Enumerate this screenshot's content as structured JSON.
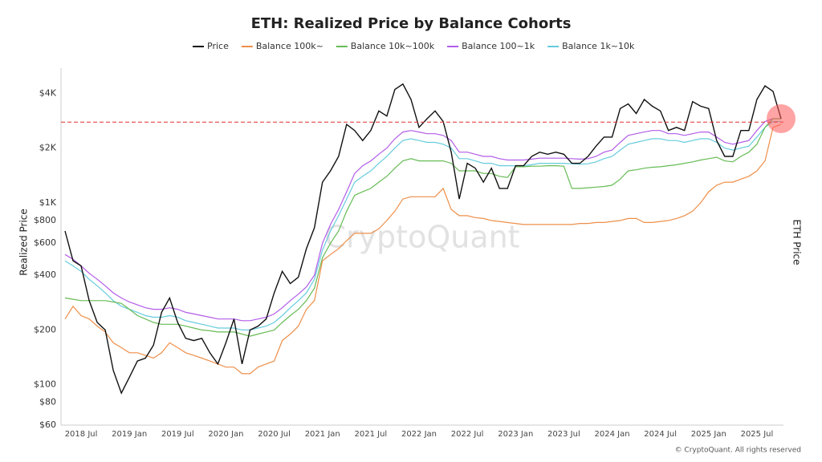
{
  "chart_data": {
    "type": "line",
    "title": "ETH: Realized Price by Balance Cohorts",
    "y_label": "Realized Price",
    "y2_label": "ETH Price",
    "watermark": "CryptoQuant",
    "credit": "© CryptoQuant. All rights reserved",
    "log_scale": true,
    "grid": false,
    "legend": "top",
    "reference_line": 2780,
    "reference_color": "#e03030",
    "x": [
      "2018 May",
      "2018 Jun",
      "2018 Jul",
      "2018 Aug",
      "2018 Sep",
      "2018 Oct",
      "2018 Nov",
      "2018 Dec",
      "2019 Jan",
      "2019 Feb",
      "2019 Mar",
      "2019 Apr",
      "2019 May",
      "2019 Jun",
      "2019 Jul",
      "2019 Aug",
      "2019 Sep",
      "2019 Oct",
      "2019 Nov",
      "2019 Dec",
      "2020 Jan",
      "2020 Feb",
      "2020 Mar",
      "2020 Apr",
      "2020 May",
      "2020 Jun",
      "2020 Jul",
      "2020 Aug",
      "2020 Sep",
      "2020 Oct",
      "2020 Nov",
      "2020 Dec",
      "2021 Jan",
      "2021 Feb",
      "2021 Mar",
      "2021 Apr",
      "2021 May",
      "2021 Jun",
      "2021 Jul",
      "2021 Aug",
      "2021 Sep",
      "2021 Oct",
      "2021 Nov",
      "2021 Dec",
      "2022 Jan",
      "2022 Feb",
      "2022 Mar",
      "2022 Apr",
      "2022 May",
      "2022 Jun",
      "2022 Jul",
      "2022 Aug",
      "2022 Sep",
      "2022 Oct",
      "2022 Nov",
      "2022 Dec",
      "2023 Jan",
      "2023 Feb",
      "2023 Mar",
      "2023 Apr",
      "2023 May",
      "2023 Jun",
      "2023 Jul",
      "2023 Aug",
      "2023 Sep",
      "2023 Oct",
      "2023 Nov",
      "2023 Dec",
      "2024 Jan",
      "2024 Feb",
      "2024 Mar",
      "2024 Apr",
      "2024 May",
      "2024 Jun",
      "2024 Jul",
      "2024 Aug",
      "2024 Sep",
      "2024 Oct",
      "2024 Nov",
      "2024 Dec",
      "2025 Jan",
      "2025 Feb",
      "2025 Mar",
      "2025 Apr",
      "2025 May",
      "2025 Jun",
      "2025 Jul",
      "2025 Aug",
      "2025 Sep",
      "2025 Oct"
    ],
    "xticks": [
      "2018 Jul",
      "2019 Jan",
      "2019 Jul",
      "2020 Jan",
      "2020 Jul",
      "2021 Jan",
      "2021 Jul",
      "2022 Jan",
      "2022 Jul",
      "2023 Jan",
      "2023 Jul",
      "2024 Jan",
      "2024 Jul",
      "2025 Jan",
      "2025 Jul"
    ],
    "ylim": [
      60,
      5500
    ],
    "yticks": [
      {
        "value": 60,
        "label": "$60"
      },
      {
        "value": 80,
        "label": "$80"
      },
      {
        "value": 100,
        "label": "$100"
      },
      {
        "value": 200,
        "label": "$200"
      },
      {
        "value": 400,
        "label": "$400"
      },
      {
        "value": 600,
        "label": "$600"
      },
      {
        "value": 800,
        "label": "$800"
      },
      {
        "value": 1000,
        "label": "$1K"
      },
      {
        "value": 2000,
        "label": "$2K"
      },
      {
        "value": 4000,
        "label": "$4K"
      }
    ],
    "series": [
      {
        "name": "Price",
        "color": "#111111",
        "values": [
          700,
          480,
          450,
          290,
          220,
          200,
          120,
          90,
          110,
          135,
          140,
          165,
          250,
          300,
          220,
          180,
          175,
          180,
          150,
          130,
          170,
          230,
          130,
          200,
          210,
          230,
          320,
          420,
          360,
          390,
          560,
          730,
          1300,
          1500,
          1800,
          2700,
          2500,
          2200,
          2500,
          3200,
          3000,
          4200,
          4500,
          3700,
          2600,
          2900,
          3200,
          2800,
          1900,
          1050,
          1650,
          1550,
          1300,
          1550,
          1200,
          1200,
          1600,
          1600,
          1800,
          1900,
          1850,
          1900,
          1850,
          1650,
          1650,
          1800,
          2050,
          2300,
          2300,
          3300,
          3500,
          3100,
          3700,
          3400,
          3200,
          2500,
          2600,
          2500,
          3600,
          3400,
          3300,
          2200,
          1800,
          1800,
          2500,
          2500,
          3700,
          4400,
          4100,
          2900
        ]
      },
      {
        "name": "Balance 100k~",
        "color": "#ee8f4a",
        "values": [
          230,
          270,
          240,
          230,
          210,
          195,
          170,
          160,
          150,
          150,
          145,
          140,
          150,
          170,
          160,
          150,
          145,
          140,
          135,
          130,
          125,
          125,
          115,
          115,
          125,
          130,
          135,
          175,
          190,
          210,
          260,
          290,
          480,
          520,
          560,
          620,
          680,
          680,
          680,
          720,
          800,
          900,
          1050,
          1080,
          1080,
          1080,
          1080,
          1200,
          920,
          850,
          850,
          830,
          820,
          800,
          790,
          780,
          770,
          760,
          760,
          760,
          760,
          760,
          760,
          760,
          770,
          770,
          780,
          780,
          790,
          800,
          820,
          820,
          780,
          780,
          790,
          800,
          820,
          850,
          900,
          1000,
          1150,
          1250,
          1300,
          1300,
          1350,
          1400,
          1500,
          1700,
          2600,
          2700
        ]
      },
      {
        "name": "Balance 10k~100k",
        "color": "#66bb55",
        "values": [
          300,
          295,
          290,
          290,
          290,
          290,
          285,
          280,
          260,
          240,
          230,
          220,
          215,
          215,
          215,
          210,
          205,
          200,
          198,
          195,
          195,
          195,
          190,
          185,
          190,
          195,
          200,
          220,
          240,
          260,
          290,
          340,
          500,
          600,
          700,
          900,
          1100,
          1150,
          1200,
          1300,
          1400,
          1550,
          1700,
          1750,
          1700,
          1700,
          1700,
          1700,
          1650,
          1500,
          1500,
          1500,
          1450,
          1450,
          1400,
          1380,
          1580,
          1580,
          1590,
          1590,
          1600,
          1600,
          1590,
          1200,
          1200,
          1210,
          1220,
          1230,
          1250,
          1350,
          1500,
          1520,
          1550,
          1570,
          1580,
          1600,
          1620,
          1650,
          1680,
          1720,
          1750,
          1780,
          1700,
          1680,
          1800,
          1900,
          2100,
          2600,
          2900,
          2900
        ]
      },
      {
        "name": "Balance 100~1k",
        "color": "#b25ce8",
        "values": [
          520,
          490,
          450,
          410,
          380,
          350,
          320,
          300,
          285,
          275,
          265,
          260,
          260,
          265,
          260,
          250,
          245,
          240,
          235,
          230,
          230,
          230,
          225,
          225,
          230,
          235,
          245,
          265,
          290,
          315,
          345,
          400,
          600,
          760,
          920,
          1150,
          1450,
          1600,
          1700,
          1850,
          2000,
          2250,
          2450,
          2500,
          2450,
          2400,
          2400,
          2350,
          2200,
          1900,
          1900,
          1850,
          1800,
          1800,
          1750,
          1720,
          1720,
          1720,
          1740,
          1760,
          1760,
          1760,
          1760,
          1750,
          1740,
          1750,
          1800,
          1900,
          1950,
          2150,
          2350,
          2400,
          2450,
          2500,
          2500,
          2400,
          2400,
          2350,
          2400,
          2450,
          2450,
          2300,
          2150,
          2100,
          2150,
          2200,
          2500,
          2800,
          2900,
          2900
        ]
      },
      {
        "name": "Balance 1k~10k",
        "color": "#66ccdd",
        "values": [
          480,
          450,
          420,
          380,
          350,
          320,
          290,
          270,
          260,
          250,
          240,
          235,
          235,
          240,
          235,
          225,
          220,
          215,
          210,
          205,
          205,
          205,
          200,
          200,
          205,
          210,
          220,
          240,
          265,
          290,
          320,
          380,
          550,
          700,
          850,
          1050,
          1300,
          1400,
          1500,
          1650,
          1800,
          2000,
          2200,
          2250,
          2200,
          2150,
          2150,
          2100,
          2000,
          1750,
          1750,
          1700,
          1650,
          1650,
          1600,
          1600,
          1600,
          1600,
          1620,
          1650,
          1650,
          1650,
          1650,
          1640,
          1630,
          1640,
          1680,
          1750,
          1800,
          1950,
          2100,
          2150,
          2200,
          2250,
          2250,
          2200,
          2200,
          2150,
          2200,
          2250,
          2250,
          2150,
          2000,
          1950,
          2000,
          2050,
          2300,
          2600,
          2800,
          2800
        ]
      }
    ]
  }
}
